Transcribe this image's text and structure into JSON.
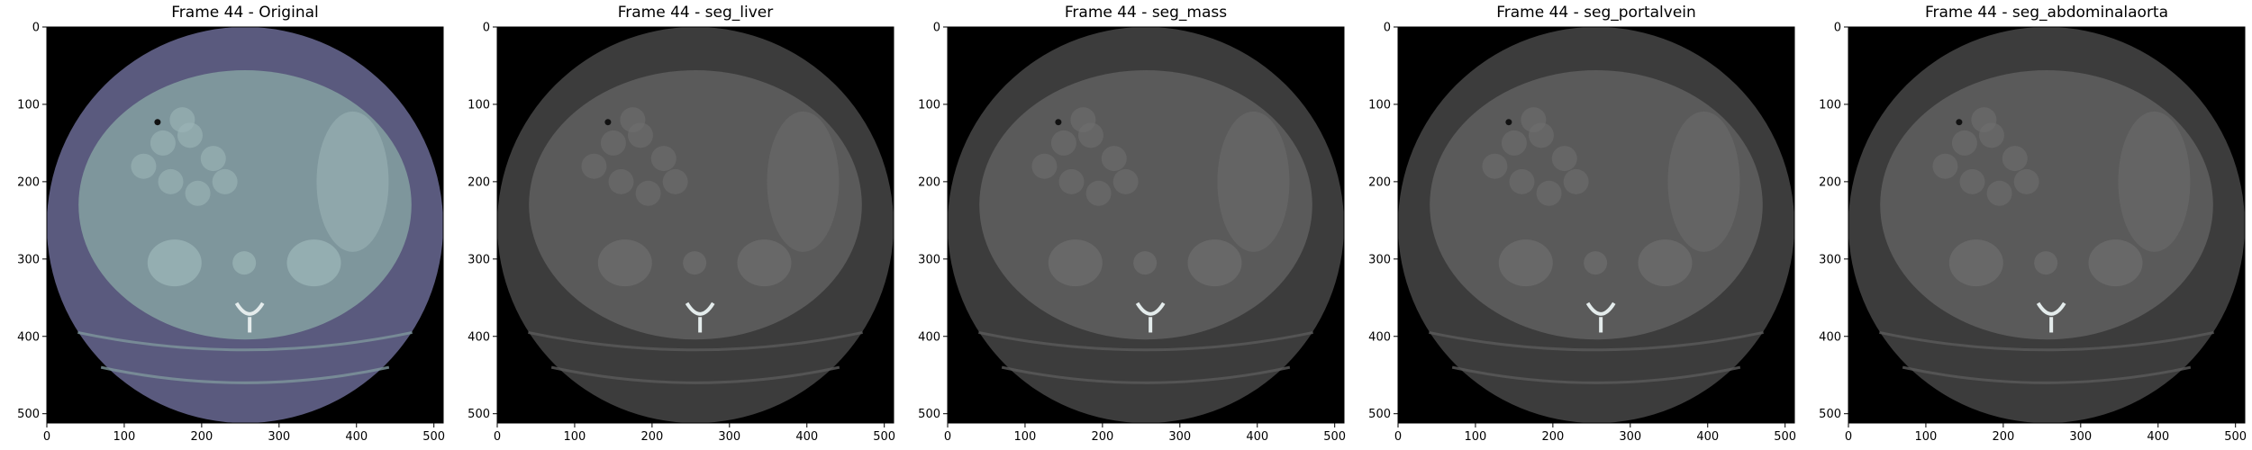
{
  "panels": [
    {
      "title": "Frame 44 - Original",
      "colormap": "bone"
    },
    {
      "title": "Frame 44 - seg_liver",
      "colormap": "gray"
    },
    {
      "title": "Frame 44 - seg_mass",
      "colormap": "gray"
    },
    {
      "title": "Frame 44 - seg_portalvein",
      "colormap": "gray"
    },
    {
      "title": "Frame 44 - seg_abdominalaorta",
      "colormap": "gray"
    }
  ],
  "axes": {
    "x_ticks": [
      "0",
      "100",
      "200",
      "300",
      "400",
      "500"
    ],
    "y_ticks": [
      "0",
      "100",
      "200",
      "300",
      "400",
      "500"
    ],
    "range": [
      0,
      512
    ]
  },
  "colors": {
    "background": "#000000",
    "bone_outer": "#5a5a7e",
    "bone_body": "#7e969c",
    "bone_organ": "#9cb6b8",
    "gray_outer": "#3c3c3c",
    "gray_body": "#5a5a5a",
    "gray_organ": "#6e6e6e"
  }
}
